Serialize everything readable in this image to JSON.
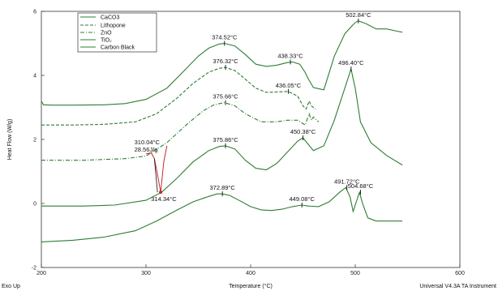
{
  "chart_data": {
    "type": "line",
    "xlabel": "Temperature (°C)",
    "ylabel": "Heat Flow (W/g)",
    "xlim": [
      200,
      600
    ],
    "ylim": [
      -2,
      6
    ],
    "x_ticks": [
      "200",
      "300",
      "400",
      "500",
      "600"
    ],
    "y_ticks": [
      "-2",
      "0",
      "2",
      "4",
      "6"
    ],
    "footer_left": "Exo Up",
    "footer_right": "Universal V4.3A TA Instrument",
    "legend_position": "top-left",
    "legend": [
      "CaCO3",
      "Lithopone",
      "ZnO",
      "TiO₂",
      "Carbon Black"
    ],
    "color": "#2e7d32",
    "series": [
      {
        "name": "CaCO3",
        "dash": "solid",
        "x": [
          200,
          202,
          210,
          230,
          260,
          280,
          300,
          320,
          335,
          350,
          360,
          370,
          375,
          385,
          395,
          405,
          415,
          425,
          435,
          440,
          447,
          452,
          455,
          460,
          470,
          480,
          490,
          497,
          500,
          503,
          510,
          520,
          530,
          540,
          545
        ],
        "y": [
          3.2,
          3.08,
          3.07,
          3.07,
          3.08,
          3.12,
          3.25,
          3.6,
          4.1,
          4.6,
          4.85,
          4.98,
          5.0,
          4.92,
          4.65,
          4.35,
          4.28,
          4.32,
          4.4,
          4.42,
          4.35,
          4.1,
          3.9,
          3.62,
          3.55,
          4.6,
          5.3,
          5.55,
          5.65,
          5.7,
          5.62,
          5.45,
          5.45,
          5.38,
          5.35
        ]
      },
      {
        "name": "Lithopone",
        "dash": "dash",
        "x": [
          200,
          230,
          260,
          290,
          310,
          330,
          345,
          360,
          370,
          376,
          385,
          395,
          405,
          415,
          425,
          436,
          445,
          450,
          453,
          456,
          458,
          462
        ],
        "y": [
          2.45,
          2.45,
          2.47,
          2.55,
          2.8,
          3.3,
          3.75,
          4.1,
          4.22,
          4.25,
          4.15,
          3.88,
          3.6,
          3.47,
          3.48,
          3.5,
          3.35,
          3.05,
          2.95,
          3.2,
          3.05,
          2.95
        ]
      },
      {
        "name": "ZnO",
        "dash": "dashdot",
        "x": [
          200,
          240,
          280,
          300,
          320,
          340,
          355,
          365,
          375,
          385,
          395,
          410,
          425,
          435,
          445,
          452,
          456,
          458,
          460,
          465
        ],
        "y": [
          1.35,
          1.35,
          1.4,
          1.48,
          1.9,
          2.5,
          2.9,
          3.08,
          3.15,
          3.05,
          2.8,
          2.55,
          2.55,
          2.6,
          2.6,
          2.45,
          2.8,
          2.6,
          2.7,
          2.55
        ]
      },
      {
        "name": "TiO₂",
        "dash": "solid",
        "x": [
          200,
          240,
          270,
          300,
          315,
          330,
          345,
          360,
          370,
          376,
          385,
          395,
          405,
          415,
          425,
          435,
          445,
          450,
          455,
          460,
          470,
          480,
          490,
          496,
          500,
          505,
          515,
          530,
          545
        ],
        "y": [
          -0.08,
          -0.08,
          -0.05,
          0.1,
          0.35,
          0.8,
          1.3,
          1.65,
          1.78,
          1.8,
          1.7,
          1.35,
          1.1,
          1.05,
          1.25,
          1.6,
          1.95,
          2.05,
          1.85,
          1.65,
          1.8,
          2.6,
          3.6,
          4.2,
          3.6,
          2.55,
          1.9,
          1.5,
          1.2
        ]
      },
      {
        "name": "Carbon Black",
        "dash": "solid",
        "x": [
          200,
          230,
          260,
          290,
          310,
          330,
          345,
          360,
          368,
          373,
          380,
          390,
          400,
          410,
          420,
          430,
          440,
          449,
          455,
          465,
          475,
          485,
          491,
          495,
          498,
          501,
          504,
          507,
          512,
          520,
          530,
          545
        ],
        "y": [
          -1.2,
          -1.15,
          -1.05,
          -0.85,
          -0.55,
          -0.2,
          0.05,
          0.22,
          0.3,
          0.3,
          0.25,
          0.08,
          -0.1,
          -0.2,
          -0.22,
          -0.18,
          -0.1,
          -0.05,
          -0.08,
          -0.1,
          0.05,
          0.35,
          0.5,
          0.2,
          -0.25,
          0.05,
          0.35,
          0.0,
          -0.45,
          -0.55,
          -0.55,
          -0.55
        ]
      }
    ],
    "annotations": [
      {
        "text": "502.84°C",
        "x": 503,
        "y": 5.7
      },
      {
        "text": "374.52°C",
        "x": 375,
        "y": 5.0
      },
      {
        "text": "438.33°C",
        "x": 438,
        "y": 4.42
      },
      {
        "text": "376.32°C",
        "x": 376,
        "y": 4.25
      },
      {
        "text": "436.05°C",
        "x": 436,
        "y": 3.5
      },
      {
        "text": "375.66°C",
        "x": 376,
        "y": 3.15
      },
      {
        "text": "496.40°C",
        "x": 496,
        "y": 4.2
      },
      {
        "text": "375.86°C",
        "x": 376,
        "y": 1.8
      },
      {
        "text": "450.38°C",
        "x": 450,
        "y": 2.05
      },
      {
        "text": "372.89°C",
        "x": 373,
        "y": 0.3
      },
      {
        "text": "449.08°C",
        "x": 449,
        "y": -0.05
      },
      {
        "text": "491.72°C",
        "x": 492,
        "y": 0.5
      },
      {
        "text": "504.68°C",
        "x": 505,
        "y": 0.35
      }
    ],
    "zno_transition": {
      "onset_label": "310.04°C",
      "enthalpy_label": "28.56J/g",
      "peak_label": "314.34°C",
      "x": [
        300,
        305,
        308,
        311,
        314,
        317,
        320
      ],
      "y": [
        1.55,
        1.58,
        1.4,
        0.9,
        0.35,
        1.3,
        1.8
      ]
    }
  }
}
